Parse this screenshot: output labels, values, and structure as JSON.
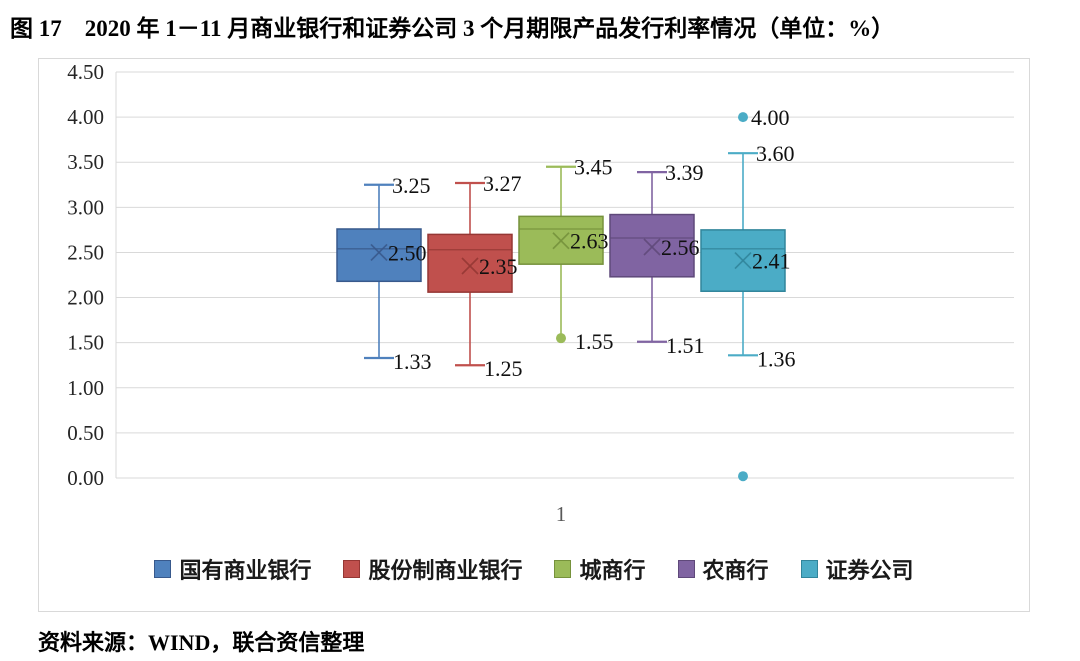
{
  "title": "图 17　2020 年 1－11 月商业银行和证券公司 3 个月期限产品发行利率情况（单位：%）",
  "source": "资料来源：WIND，联合资信整理",
  "chart_data": {
    "type": "boxplot",
    "title": "2020 年 1－11 月商业银行和证券公司 3 个月期限产品发行利率情况",
    "unit": "%",
    "x_categories": [
      "1"
    ],
    "ylim": [
      0,
      4.5
    ],
    "y_tick_step": 0.5,
    "grid": true,
    "grid_color": "#d9d9d9",
    "legend_position": "bottom",
    "series": [
      {
        "name": "国有商业银行",
        "color": "#4f81bd",
        "edge": "#38598c",
        "whisker_high": 3.25,
        "q3": 2.76,
        "median": 2.54,
        "q1": 2.18,
        "whisker_low": 1.33,
        "mean": 2.5,
        "low_cap": "T"
      },
      {
        "name": "股份制商业银行",
        "color": "#c0504d",
        "edge": "#953734",
        "whisker_high": 3.27,
        "q3": 2.7,
        "median": 2.53,
        "q1": 2.06,
        "whisker_low": 1.25,
        "mean": 2.35,
        "low_cap": "T"
      },
      {
        "name": "城商行",
        "color": "#9bbb59",
        "edge": "#76923c",
        "whisker_high": 3.45,
        "q3": 2.9,
        "median": 2.76,
        "q1": 2.37,
        "whisker_low": 1.55,
        "mean": 2.63,
        "low_cap": "dot"
      },
      {
        "name": "农商行",
        "color": "#8064a2",
        "edge": "#5f497a",
        "whisker_high": 3.39,
        "q3": 2.92,
        "median": 2.66,
        "q1": 2.23,
        "whisker_low": 1.51,
        "mean": 2.56,
        "low_cap": "T"
      },
      {
        "name": "证券公司",
        "color": "#4bacc6",
        "edge": "#31859b",
        "whisker_high": 3.6,
        "q3": 2.75,
        "median": 2.54,
        "q1": 2.07,
        "whisker_low": 1.36,
        "mean": 2.41,
        "low_cap": "T"
      }
    ],
    "outliers": [
      {
        "series_index": 4,
        "value": 4.0,
        "labeled": true
      },
      {
        "series_index": 4,
        "value": 0.02,
        "labeled": false
      }
    ],
    "labeled_stats": [
      "whisker_high",
      "whisker_low",
      "mean"
    ]
  }
}
